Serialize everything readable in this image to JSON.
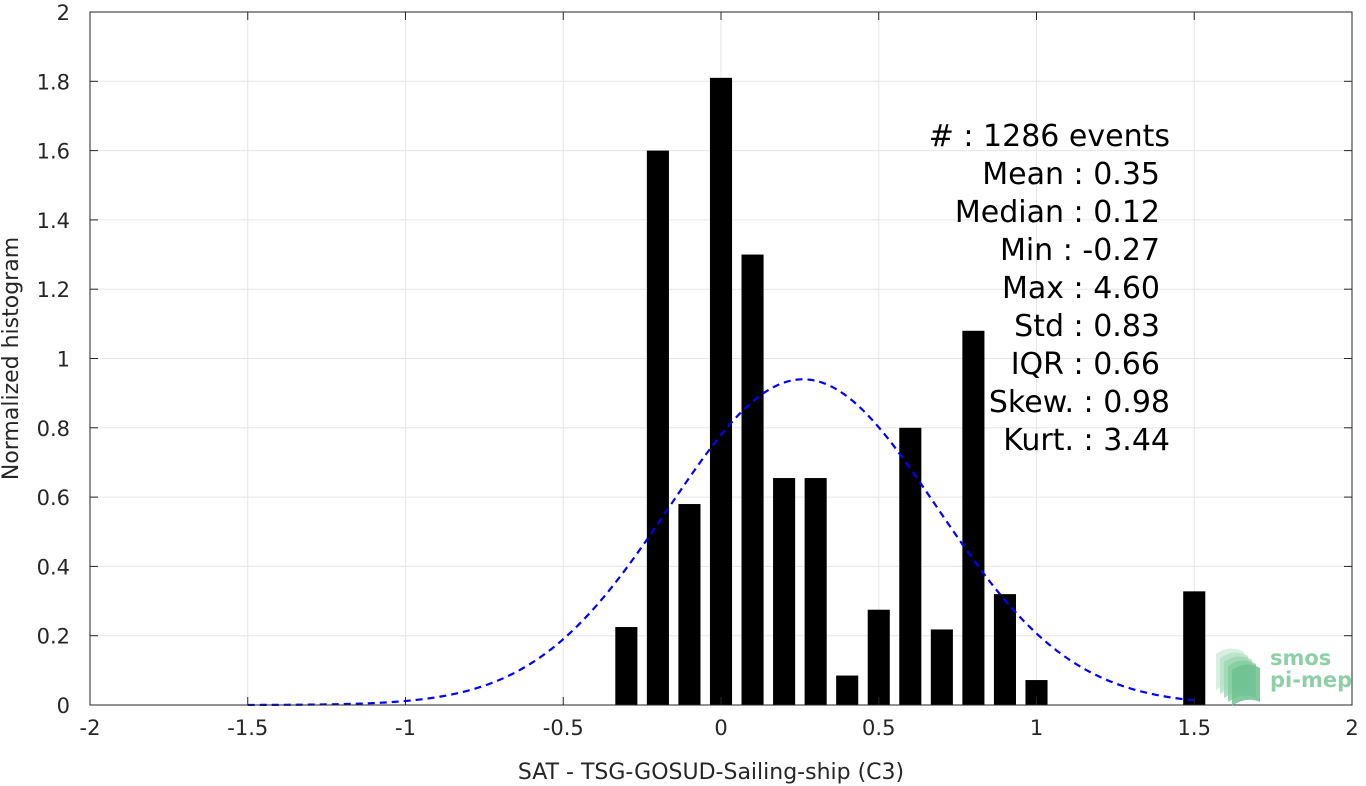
{
  "chart_data": {
    "type": "bar",
    "xlabel": "SAT - TSG-GOSUD-Sailing-ship (C3)",
    "ylabel": "Normalized histogram",
    "xlim": [
      -2,
      2
    ],
    "ylim": [
      0,
      2
    ],
    "xticks": [
      -2,
      -1.5,
      -1,
      -0.5,
      0,
      0.5,
      1,
      1.5,
      2
    ],
    "xtick_labels": [
      "-2",
      "-1.5",
      "-1",
      "-0.5",
      "0",
      "0.5",
      "1",
      "1.5",
      "2"
    ],
    "yticks": [
      0,
      0.2,
      0.4,
      0.6,
      0.8,
      1,
      1.2,
      1.4,
      1.6,
      1.8,
      2
    ],
    "ytick_labels": [
      "0",
      "0.2",
      "0.4",
      "0.6",
      "0.8",
      "1",
      "1.2",
      "1.4",
      "1.6",
      "1.8",
      "2"
    ],
    "grid": true,
    "bar_width": 0.07,
    "bar_color": "#000000",
    "bars": [
      {
        "x": -0.3,
        "y": 0.225
      },
      {
        "x": -0.2,
        "y": 1.6
      },
      {
        "x": -0.1,
        "y": 0.58
      },
      {
        "x": 0.0,
        "y": 1.81
      },
      {
        "x": 0.1,
        "y": 1.3
      },
      {
        "x": 0.2,
        "y": 0.655
      },
      {
        "x": 0.3,
        "y": 0.655
      },
      {
        "x": 0.4,
        "y": 0.085
      },
      {
        "x": 0.5,
        "y": 0.275
      },
      {
        "x": 0.6,
        "y": 0.8
      },
      {
        "x": 0.7,
        "y": 0.218
      },
      {
        "x": 0.8,
        "y": 1.08
      },
      {
        "x": 0.9,
        "y": 0.32
      },
      {
        "x": 1.0,
        "y": 0.072
      },
      {
        "x": 1.5,
        "y": 0.328
      }
    ],
    "fit_curve": {
      "style": "dashed",
      "color": "#0000ff",
      "mean": 0.26,
      "std": 0.425,
      "peak": 0.94,
      "x_range": [
        -1.5,
        1.5
      ]
    },
    "stats": [
      "#  : 1286 events",
      "Mean : 0.35",
      "Median : 0.12",
      "Min : -0.27",
      "Max : 4.60",
      "Std : 0.83",
      "IQR : 0.66",
      "Skew. : 0.98",
      "Kurt. : 3.44"
    ]
  },
  "logo": {
    "line1": "smos",
    "line2": "pi-mep",
    "color": "#8fcfa8"
  }
}
